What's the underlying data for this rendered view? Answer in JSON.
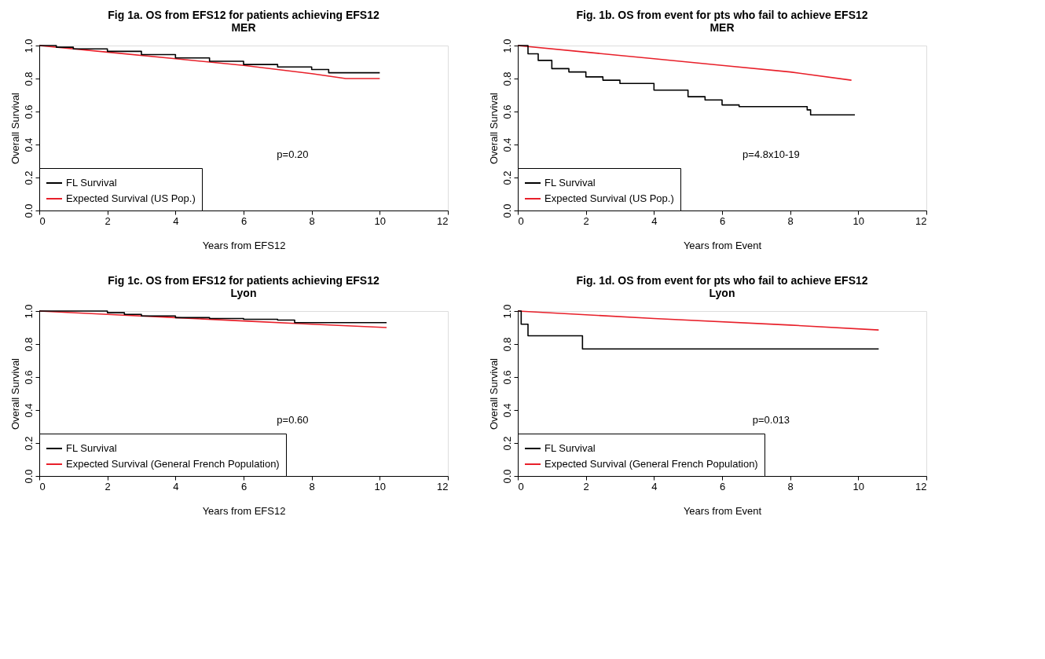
{
  "chart_data": [
    {
      "type": "step",
      "title": "Fig 1a. OS from EFS12 for patients achieving EFS12",
      "subtitle": "MER",
      "xlabel": "Years from EFS12",
      "ylabel": "Overall Survival",
      "xlim": [
        0,
        12
      ],
      "xticks": [
        0,
        2,
        4,
        6,
        8,
        10,
        12
      ],
      "ylim": [
        0,
        1
      ],
      "yticks": [
        {
          "value": 0,
          "label": "0.0"
        },
        {
          "value": 0.2,
          "label": "0.2"
        },
        {
          "value": 0.4,
          "label": "0.4"
        },
        {
          "value": 0.6,
          "label": "0.6"
        },
        {
          "value": 0.8,
          "label": "0.8"
        },
        {
          "value": 1,
          "label": "1.0"
        }
      ],
      "grid": false,
      "legend": "bottom left",
      "annotations": [
        "p=0.20"
      ],
      "series": [
        {
          "name": "FL Survival",
          "color": "#000000",
          "x": [
            0,
            0.5,
            1,
            2,
            3,
            4,
            5,
            6,
            7,
            8,
            8.5,
            10
          ],
          "values": [
            1.0,
            0.99,
            0.98,
            0.965,
            0.945,
            0.925,
            0.905,
            0.885,
            0.87,
            0.855,
            0.835,
            0.835
          ]
        },
        {
          "name": "Expected Survival (US Pop.)",
          "type": "line",
          "color": "#e8202a",
          "x": [
            0,
            2,
            4,
            6,
            8,
            9,
            10
          ],
          "values": [
            1.0,
            0.96,
            0.92,
            0.88,
            0.83,
            0.8,
            0.8
          ]
        }
      ]
    },
    {
      "type": "step",
      "title": "Fig. 1b. OS from event for pts who fail to achieve EFS12",
      "subtitle": "MER",
      "xlabel": "Years from Event",
      "ylabel": "Overall Survival",
      "xlim": [
        0,
        12
      ],
      "xticks": [
        0,
        2,
        4,
        6,
        8,
        10,
        12
      ],
      "ylim": [
        0,
        1
      ],
      "yticks": [
        {
          "value": 0,
          "label": "0.0"
        },
        {
          "value": 0.2,
          "label": "0.2"
        },
        {
          "value": 0.4,
          "label": "0.4"
        },
        {
          "value": 0.6,
          "label": "0.6"
        },
        {
          "value": 0.8,
          "label": "0.8"
        },
        {
          "value": 1,
          "label": "1.0"
        }
      ],
      "grid": false,
      "legend": "bottom left",
      "annotations": [
        "p=4.8x10-19"
      ],
      "series": [
        {
          "name": "FL Survival",
          "color": "#000000",
          "x": [
            0,
            0.3,
            0.6,
            1,
            1.5,
            2,
            2.5,
            3,
            4,
            5,
            5.5,
            6,
            6.5,
            8.5,
            8.6,
            9.9
          ],
          "values": [
            1.0,
            0.95,
            0.91,
            0.86,
            0.84,
            0.81,
            0.79,
            0.77,
            0.73,
            0.69,
            0.67,
            0.64,
            0.63,
            0.61,
            0.58,
            0.58
          ]
        },
        {
          "name": "Expected Survival (US Pop.)",
          "type": "line",
          "color": "#e8202a",
          "x": [
            0,
            2,
            4,
            6,
            8,
            9.8
          ],
          "values": [
            1.0,
            0.96,
            0.92,
            0.88,
            0.84,
            0.79
          ]
        }
      ]
    },
    {
      "type": "step",
      "title": "Fig 1c. OS from EFS12 for patients achieving EFS12",
      "subtitle": "Lyon",
      "xlabel": "Years from EFS12",
      "ylabel": "Overall Survival",
      "xlim": [
        0,
        12
      ],
      "xticks": [
        0,
        2,
        4,
        6,
        8,
        10,
        12
      ],
      "ylim": [
        0,
        1
      ],
      "yticks": [
        {
          "value": 0,
          "label": "0.0"
        },
        {
          "value": 0.2,
          "label": "0.2"
        },
        {
          "value": 0.4,
          "label": "0.4"
        },
        {
          "value": 0.6,
          "label": "0.6"
        },
        {
          "value": 0.8,
          "label": "0.8"
        },
        {
          "value": 1,
          "label": "1.0"
        }
      ],
      "grid": false,
      "legend": "bottom left",
      "annotations": [
        "p=0.60"
      ],
      "series": [
        {
          "name": "FL Survival",
          "color": "#000000",
          "x": [
            0,
            2,
            2.5,
            3,
            4,
            5,
            6,
            7,
            7.5,
            10.2
          ],
          "values": [
            1.0,
            0.99,
            0.98,
            0.97,
            0.96,
            0.955,
            0.95,
            0.945,
            0.93,
            0.93
          ]
        },
        {
          "name": "Expected Survival (General French Population)",
          "type": "line",
          "color": "#e8202a",
          "x": [
            0,
            2,
            4,
            6,
            8,
            10.2
          ],
          "values": [
            1.0,
            0.98,
            0.96,
            0.94,
            0.92,
            0.9
          ]
        }
      ]
    },
    {
      "type": "step",
      "title": "Fig. 1d. OS from event for pts who fail to achieve EFS12",
      "subtitle": "Lyon",
      "xlabel": "Years from Event",
      "ylabel": "Overall Survival",
      "xlim": [
        0,
        12
      ],
      "xticks": [
        0,
        2,
        4,
        6,
        8,
        10,
        12
      ],
      "ylim": [
        0,
        1
      ],
      "yticks": [
        {
          "value": 0,
          "label": "0.0"
        },
        {
          "value": 0.2,
          "label": "0.2"
        },
        {
          "value": 0.4,
          "label": "0.4"
        },
        {
          "value": 0.6,
          "label": "0.6"
        },
        {
          "value": 0.8,
          "label": "0.8"
        },
        {
          "value": 1,
          "label": "1.0"
        }
      ],
      "grid": false,
      "legend": "bottom left",
      "annotations": [
        "p=0.013"
      ],
      "series": [
        {
          "name": "FL Survival",
          "color": "#000000",
          "x": [
            0,
            0.1,
            0.3,
            1.9,
            10.6
          ],
          "values": [
            1.0,
            0.92,
            0.85,
            0.77,
            0.77
          ]
        },
        {
          "name": "Expected Survival (General French Population)",
          "type": "line",
          "color": "#e8202a",
          "x": [
            0,
            4,
            8,
            10.6
          ],
          "values": [
            1.0,
            0.955,
            0.915,
            0.885
          ]
        }
      ]
    }
  ]
}
